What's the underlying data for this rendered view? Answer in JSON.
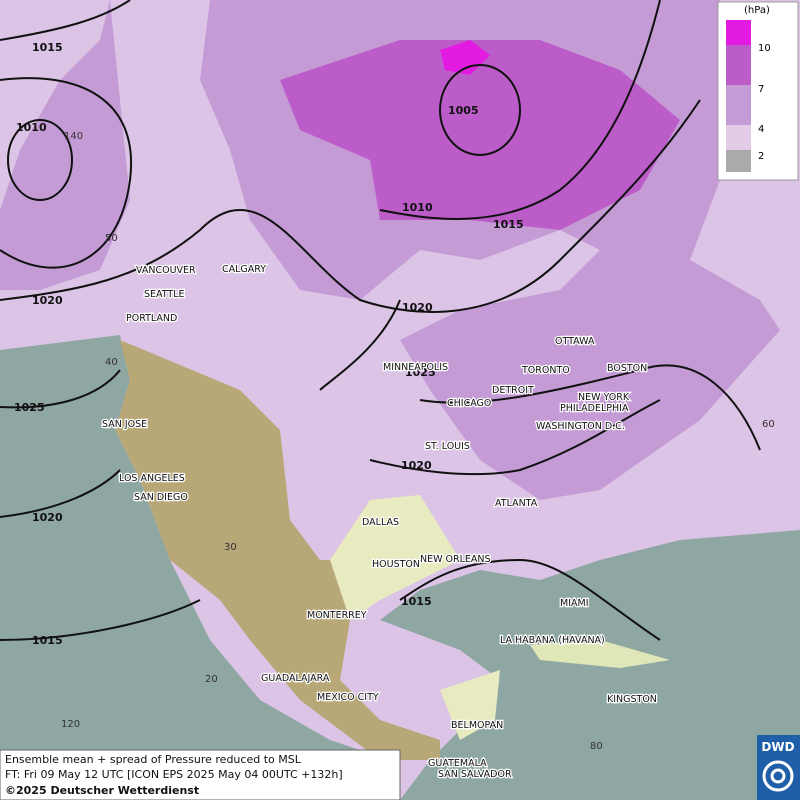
{
  "map": {
    "cities": [
      "VANCOUVER",
      "CALGARY",
      "SEATTLE",
      "PORTLAND",
      "SAN JOSE",
      "LOS ANGELES",
      "SAN DIEGO",
      "MINNEAPOLIS",
      "OTTAWA",
      "TORONTO",
      "DETROIT",
      "CHICAGO",
      "BOSTON",
      "NEW YORK",
      "PHILADELPHIA",
      "WASHINGTON D.C.",
      "ST. LOUIS",
      "ATLANTA",
      "DALLAS",
      "HOUSTON",
      "NEW ORLEANS",
      "MIAMI",
      "MONTERREY",
      "LA HABANA (HAVANA)",
      "KINGSTON",
      "GUADALAJARA",
      "MEXICO CITY",
      "BELMOPAN",
      "GUATEMALA",
      "SAN SALVADOR"
    ],
    "isobar_labels": [
      1015,
      1010,
      1005,
      1010,
      1015,
      1020,
      1020,
      1025,
      1025,
      1020,
      1020,
      1015,
      1015
    ],
    "graticule_labels": [
      "140",
      "50",
      "40",
      "30",
      "20",
      "120",
      "80",
      "60"
    ],
    "legend": {
      "unit": "(hPa)",
      "ticks": [
        "10",
        "7",
        "4",
        "2"
      ]
    },
    "caption": [
      "Ensemble mean + spread of Pressure reduced to MSL",
      "FT: Fri 09 May 12 UTC [ICON EPS 2025 May 04 00UTC +132h]",
      "©2025 Deutscher Wetterdienst"
    ],
    "logo": "DWD"
  }
}
